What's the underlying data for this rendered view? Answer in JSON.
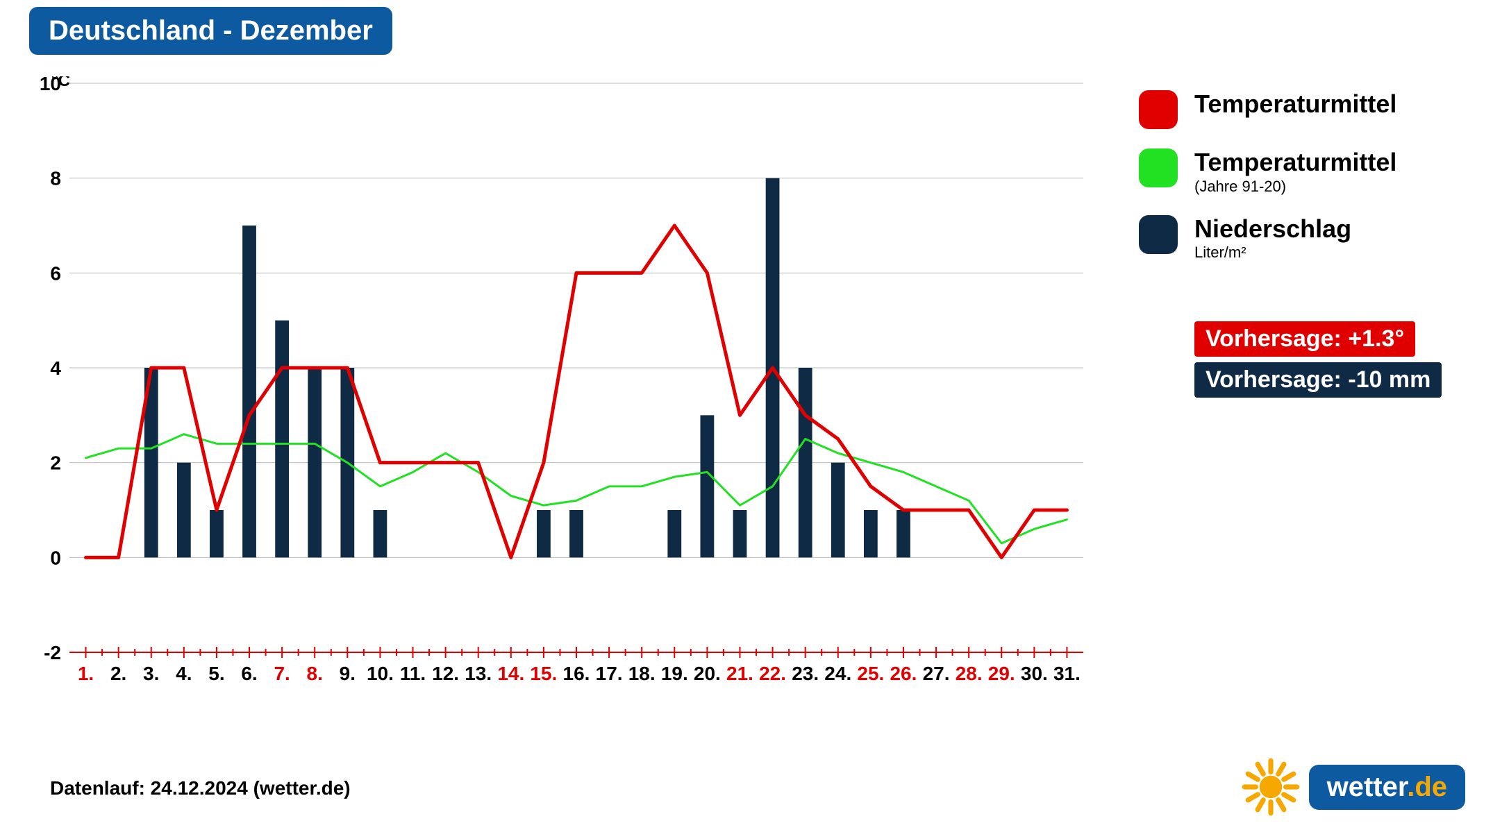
{
  "title": "Deutschland - Dezember",
  "chart": {
    "type": "combo-bar-line",
    "y_unit_label": "°C",
    "ylim": [
      -2,
      10
    ],
    "ytick_step": 2,
    "grid_color": "#808080",
    "grid_width": 1,
    "background_color": "#ffffff",
    "axis_font_size": 28,
    "axis_font_weight": "700",
    "tick_color_default": "#000000",
    "tick_color_highlight": "#e10000",
    "x_tick_mark_color": "#e10000",
    "x_days": [
      1,
      2,
      3,
      4,
      5,
      6,
      7,
      8,
      9,
      10,
      11,
      12,
      13,
      14,
      15,
      16,
      17,
      18,
      19,
      20,
      21,
      22,
      23,
      24,
      25,
      26,
      27,
      28,
      29,
      30,
      31
    ],
    "x_highlight": [
      1,
      7,
      8,
      14,
      15,
      21,
      22,
      25,
      26,
      28,
      29
    ],
    "series": {
      "temp_mean": {
        "label": "Temperaturmittel",
        "color": "#e10000",
        "line_width": 5,
        "values": [
          0,
          0,
          4,
          4,
          1,
          3,
          4,
          4,
          4,
          2,
          2,
          2,
          2,
          0,
          2,
          6,
          6,
          6,
          7,
          6,
          3,
          4,
          3,
          2.5,
          1.5,
          1,
          1,
          1,
          0,
          1,
          1
        ]
      },
      "temp_mean_9120": {
        "label": "Temperaturmittel",
        "sublabel": "(Jahre 91-20)",
        "color": "#22e022",
        "line_width": 3,
        "values": [
          2.1,
          2.3,
          2.3,
          2.6,
          2.4,
          2.4,
          2.4,
          2.4,
          2.0,
          1.5,
          1.8,
          2.2,
          1.8,
          1.3,
          1.1,
          1.2,
          1.5,
          1.5,
          1.7,
          1.8,
          1.1,
          1.5,
          2.5,
          2.2,
          2.0,
          1.8,
          1.5,
          1.2,
          0.3,
          0.6,
          0.8
        ]
      },
      "precip": {
        "label": "Niederschlag",
        "sublabel": "Liter/m²",
        "color": "#0f2a44",
        "bar_width_ratio": 0.42,
        "values": [
          0,
          0,
          4,
          2,
          1,
          7,
          5,
          4,
          4,
          1,
          0,
          0,
          0,
          0,
          1,
          1,
          0,
          0,
          1,
          3,
          1,
          8,
          4,
          2,
          1,
          1,
          0,
          0,
          0,
          0,
          0
        ]
      }
    }
  },
  "legend": {
    "items": [
      {
        "key": "temp_mean"
      },
      {
        "key": "temp_mean_9120"
      },
      {
        "key": "precip"
      }
    ]
  },
  "forecasts": [
    {
      "text": "Vorhersage: +1.3°",
      "bg": "#e10000"
    },
    {
      "text": "Vorhersage: -10 mm",
      "bg": "#0f2a44"
    }
  ],
  "footer": "Datenlauf: 24.12.2024 (wetter.de)",
  "brand": {
    "name": "wetter",
    "tld": ".de",
    "sun_color": "#f6a800",
    "pill_bg": "#0d5aa0"
  }
}
